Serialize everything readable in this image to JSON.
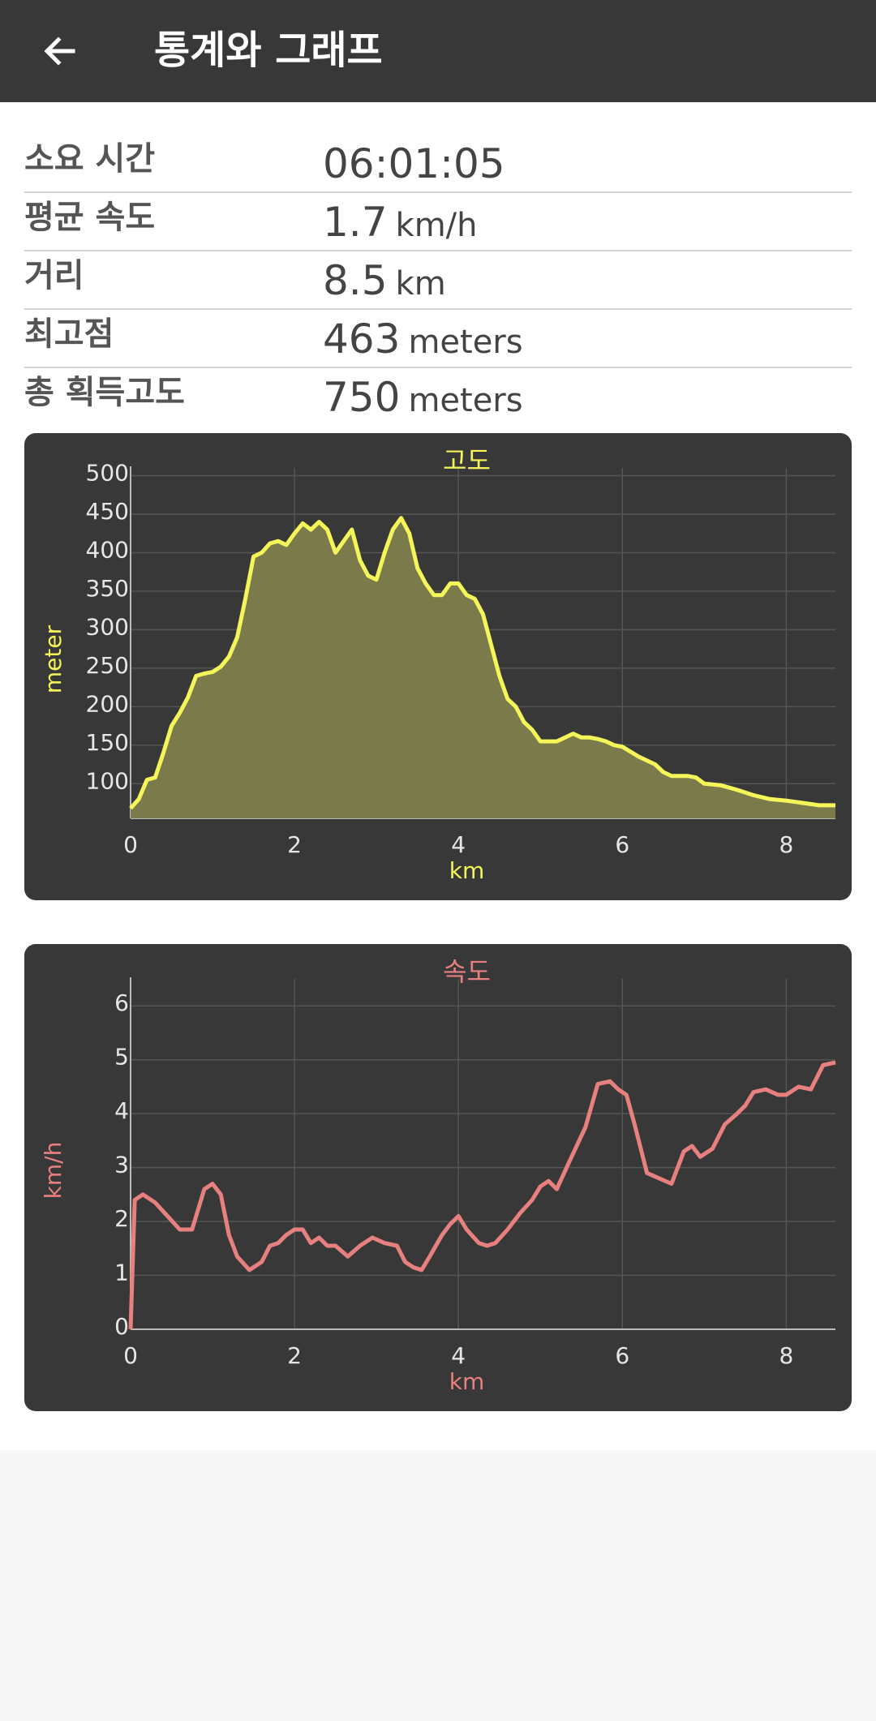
{
  "appbar": {
    "title": "통계와 그래프",
    "back_icon": "arrow-back-icon"
  },
  "stats": [
    {
      "label": "소요 시간",
      "value": "06:01:05",
      "unit": ""
    },
    {
      "label": "평균 속도",
      "value": "1.7",
      "unit": "km/h"
    },
    {
      "label": "거리",
      "value": "8.5",
      "unit": "km"
    },
    {
      "label": "최고점",
      "value": "463",
      "unit": "meters"
    },
    {
      "label": "총 획득고도",
      "value": "750",
      "unit": "meters"
    }
  ],
  "chart_data": [
    {
      "type": "area",
      "title": "고도",
      "xlabel": "km",
      "ylabel": "meter",
      "xlim": [
        0,
        8.6
      ],
      "ylim": [
        55,
        510
      ],
      "xticks": [
        "0",
        "2",
        "4",
        "6",
        "8"
      ],
      "yticks": [
        "100",
        "150",
        "200",
        "250",
        "300",
        "350",
        "400",
        "450",
        "500"
      ],
      "line_color": "#f5f55a",
      "fill_color": "#7a7a4a",
      "grid": true,
      "x": [
        0,
        0.1,
        0.2,
        0.3,
        0.4,
        0.5,
        0.6,
        0.7,
        0.8,
        0.9,
        1.0,
        1.1,
        1.2,
        1.3,
        1.4,
        1.5,
        1.6,
        1.7,
        1.8,
        1.9,
        2.0,
        2.1,
        2.2,
        2.3,
        2.4,
        2.5,
        2.6,
        2.7,
        2.8,
        2.9,
        3.0,
        3.1,
        3.2,
        3.3,
        3.4,
        3.5,
        3.6,
        3.7,
        3.8,
        3.9,
        4.0,
        4.1,
        4.2,
        4.3,
        4.4,
        4.5,
        4.6,
        4.7,
        4.8,
        4.9,
        5.0,
        5.2,
        5.4,
        5.5,
        5.6,
        5.7,
        5.8,
        5.9,
        6.0,
        6.2,
        6.3,
        6.4,
        6.5,
        6.6,
        6.8,
        6.9,
        7.0,
        7.2,
        7.4,
        7.6,
        7.8,
        8.0,
        8.2,
        8.4,
        8.6
      ],
      "y": [
        68,
        80,
        105,
        108,
        140,
        175,
        192,
        212,
        240,
        243,
        245,
        252,
        265,
        290,
        340,
        395,
        400,
        412,
        415,
        410,
        425,
        438,
        430,
        440,
        430,
        400,
        415,
        430,
        390,
        370,
        365,
        400,
        430,
        445,
        425,
        380,
        360,
        345,
        345,
        360,
        360,
        345,
        340,
        320,
        280,
        240,
        210,
        200,
        180,
        170,
        155,
        155,
        165,
        160,
        160,
        158,
        155,
        150,
        148,
        135,
        130,
        125,
        115,
        110,
        110,
        108,
        100,
        98,
        92,
        85,
        80,
        78,
        75,
        72,
        72
      ]
    },
    {
      "type": "line",
      "title": "속도",
      "xlabel": "km",
      "ylabel": "km/h",
      "xlim": [
        0,
        8.6
      ],
      "ylim": [
        0,
        6.5
      ],
      "xticks": [
        "0",
        "2",
        "4",
        "6",
        "8"
      ],
      "yticks": [
        "0",
        "1",
        "2",
        "3",
        "4",
        "5",
        "6"
      ],
      "line_color": "#e88080",
      "grid": true,
      "x": [
        0,
        0.05,
        0.15,
        0.3,
        0.45,
        0.6,
        0.75,
        0.9,
        1.0,
        1.1,
        1.2,
        1.3,
        1.45,
        1.6,
        1.7,
        1.8,
        1.9,
        2.0,
        2.1,
        2.2,
        2.3,
        2.4,
        2.5,
        2.65,
        2.8,
        2.95,
        3.1,
        3.25,
        3.35,
        3.45,
        3.55,
        3.65,
        3.8,
        3.9,
        4.0,
        4.1,
        4.25,
        4.35,
        4.45,
        4.6,
        4.75,
        4.9,
        5.0,
        5.1,
        5.2,
        5.35,
        5.55,
        5.7,
        5.85,
        5.95,
        6.05,
        6.15,
        6.3,
        6.45,
        6.6,
        6.75,
        6.85,
        6.95,
        7.1,
        7.25,
        7.4,
        7.5,
        7.6,
        7.75,
        7.9,
        8.0,
        8.15,
        8.3,
        8.45,
        8.6
      ],
      "y": [
        0.0,
        2.4,
        2.5,
        2.35,
        2.1,
        1.85,
        1.85,
        2.6,
        2.7,
        2.5,
        1.75,
        1.35,
        1.1,
        1.25,
        1.55,
        1.6,
        1.75,
        1.85,
        1.85,
        1.6,
        1.7,
        1.55,
        1.55,
        1.35,
        1.55,
        1.7,
        1.6,
        1.55,
        1.25,
        1.15,
        1.1,
        1.35,
        1.75,
        1.95,
        2.1,
        1.85,
        1.6,
        1.55,
        1.6,
        1.85,
        2.15,
        2.4,
        2.65,
        2.75,
        2.6,
        3.1,
        3.75,
        4.55,
        4.6,
        4.45,
        4.35,
        3.8,
        2.9,
        2.8,
        2.7,
        3.3,
        3.4,
        3.2,
        3.35,
        3.8,
        4.0,
        4.15,
        4.4,
        4.45,
        4.35,
        4.35,
        4.5,
        4.45,
        4.9,
        4.95
      ]
    }
  ]
}
